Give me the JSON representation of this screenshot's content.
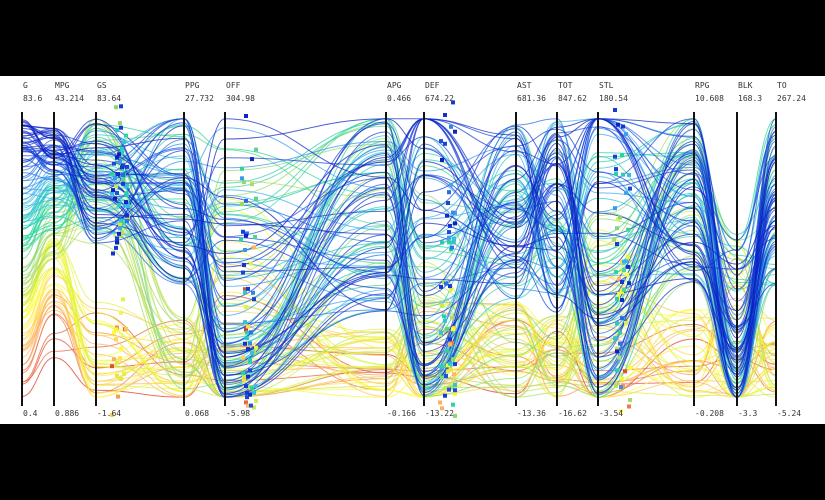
{
  "chart_data": {
    "type": "parallel-coordinates",
    "axes": [
      {
        "name": "G",
        "max": "83.6",
        "min": "0.4"
      },
      {
        "name": "MPG",
        "max": "43.214",
        "min": "0.886"
      },
      {
        "name": "GS",
        "max": "83.64",
        "min": "-1.64"
      },
      {
        "name": "PPG",
        "max": "27.732",
        "min": "0.068"
      },
      {
        "name": "OFF",
        "max": "304.98",
        "min": "-5.98"
      },
      {
        "name": "APG",
        "max": "0.466",
        "min": "-0.166"
      },
      {
        "name": "DEF",
        "max": "674.22",
        "min": "-13.22"
      },
      {
        "name": "AST",
        "max": "681.36",
        "min": "-13.36"
      },
      {
        "name": "TOT",
        "max": "847.62",
        "min": "-16.62"
      },
      {
        "name": "STL",
        "max": "180.54",
        "min": "-3.54"
      },
      {
        "name": "RPG",
        "max": "10.608",
        "min": "-0.208"
      },
      {
        "name": "BLK",
        "max": "168.3",
        "min": "-3.3"
      },
      {
        "name": "TO",
        "max": "267.24",
        "min": "-5.24"
      }
    ],
    "color_scale": [
      "#d7301f",
      "#fdae61",
      "#ffff33",
      "#a6d96a",
      "#1fd5a0",
      "#3fb7f0",
      "#1f4fe0",
      "#0a1fc0"
    ],
    "grid": false,
    "legend": "none"
  }
}
